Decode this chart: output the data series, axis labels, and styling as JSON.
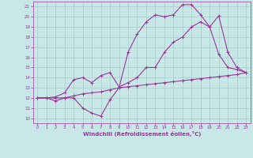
{
  "xlabel": "Windchill (Refroidissement éolien,°C)",
  "bg_color": "#c8e8e8",
  "line_color": "#993399",
  "grid_color": "#b0d0d0",
  "xlim": [
    -0.5,
    23.5
  ],
  "ylim": [
    9.5,
    21.5
  ],
  "xticks": [
    0,
    1,
    2,
    3,
    4,
    5,
    6,
    7,
    8,
    9,
    10,
    11,
    12,
    13,
    14,
    15,
    16,
    17,
    18,
    19,
    20,
    21,
    22,
    23
  ],
  "yticks": [
    10,
    11,
    12,
    13,
    14,
    15,
    16,
    17,
    18,
    19,
    20,
    21
  ],
  "series": [
    {
      "x": [
        0,
        1,
        2,
        3,
        4,
        5,
        6,
        7,
        8,
        9,
        10,
        11,
        12,
        13,
        14,
        15,
        16,
        17,
        18,
        19,
        20,
        21,
        22,
        23
      ],
      "y": [
        12,
        12,
        11.7,
        12,
        12,
        11,
        10.5,
        10.2,
        11.8,
        13,
        16.5,
        18.3,
        19.5,
        20.2,
        20,
        20.2,
        21.2,
        21.2,
        20.2,
        19,
        16.3,
        15,
        14.8,
        14.5
      ]
    },
    {
      "x": [
        0,
        1,
        2,
        3,
        4,
        5,
        6,
        7,
        8,
        9,
        10,
        11,
        12,
        13,
        14,
        15,
        16,
        17,
        18,
        19,
        20,
        21,
        22,
        23
      ],
      "y": [
        12,
        12,
        12.1,
        12.5,
        13.8,
        14,
        13.5,
        14.2,
        14.5,
        13.1,
        13.5,
        14,
        15,
        15,
        16.5,
        17.5,
        18,
        19,
        19.5,
        19,
        20.1,
        16.5,
        15,
        14.5
      ]
    },
    {
      "x": [
        0,
        1,
        2,
        3,
        4,
        5,
        6,
        7,
        8,
        9,
        10,
        11,
        12,
        13,
        14,
        15,
        16,
        17,
        18,
        19,
        20,
        21,
        22,
        23
      ],
      "y": [
        12,
        12,
        12,
        12,
        12.2,
        12.4,
        12.5,
        12.6,
        12.8,
        13,
        13.1,
        13.2,
        13.3,
        13.4,
        13.5,
        13.6,
        13.7,
        13.8,
        13.9,
        14,
        14.1,
        14.2,
        14.3,
        14.5
      ]
    }
  ]
}
